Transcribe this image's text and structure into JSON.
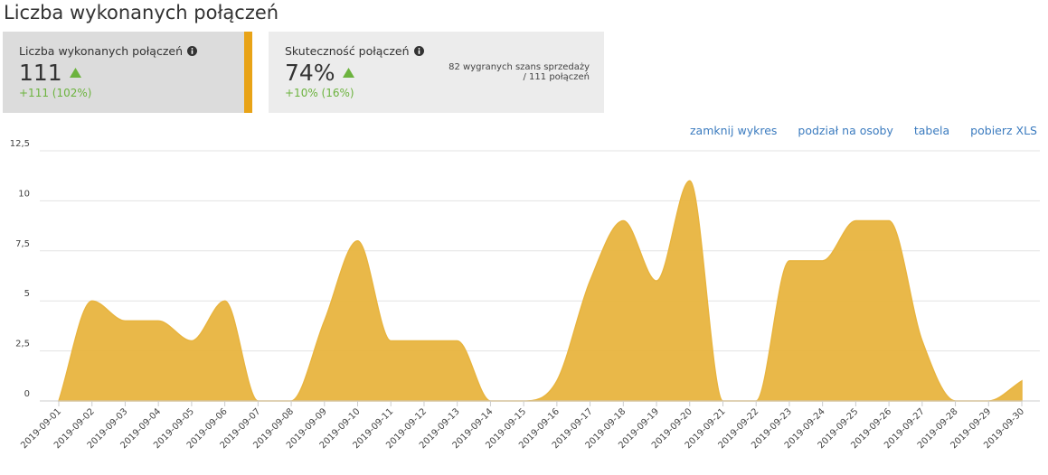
{
  "header": {
    "title": "Liczba wykonanych połączeń"
  },
  "cards": [
    {
      "label": "Liczba wykonanych połączeń",
      "value": "111",
      "change": "+111 (102%)"
    },
    {
      "label": "Skuteczność połączeń",
      "value": "74%",
      "change": "+10% (16%)",
      "note": [
        "82 wygranych szans sprzedaży",
        "/ 111 połączeń"
      ]
    }
  ],
  "links": [
    "zamknij wykres",
    "podział na osoby",
    "tabela",
    "pobierz XLS"
  ],
  "chart_data": {
    "type": "area",
    "categories": [
      "2019-09-01",
      "2019-09-02",
      "2019-09-03",
      "2019-09-04",
      "2019-09-05",
      "2019-09-06",
      "2019-09-07",
      "2019-09-08",
      "2019-09-09",
      "2019-09-10",
      "2019-09-11",
      "2019-09-12",
      "2019-09-13",
      "2019-09-14",
      "2019-09-15",
      "2019-09-16",
      "2019-09-17",
      "2019-09-18",
      "2019-09-19",
      "2019-09-20",
      "2019-09-21",
      "2019-09-22",
      "2019-09-23",
      "2019-09-24",
      "2019-09-25",
      "2019-09-26",
      "2019-09-27",
      "2019-09-28",
      "2019-09-29",
      "2019-09-30"
    ],
    "values": [
      0,
      5,
      4,
      4,
      3,
      5,
      0,
      0,
      4,
      8,
      3,
      3,
      3,
      0,
      0,
      1,
      6,
      9,
      6,
      11,
      0,
      0,
      7,
      7,
      9,
      9,
      3,
      0,
      0,
      1
    ],
    "color": "#e8b43f",
    "ylim": [
      0,
      12.5
    ],
    "yticks": [
      0,
      {
        "value": 2.5,
        "label": "2,5"
      },
      5,
      {
        "value": 7.5,
        "label": "7,5"
      },
      10,
      {
        "value": 12.5,
        "label": "12,5"
      }
    ],
    "grid": true
  }
}
